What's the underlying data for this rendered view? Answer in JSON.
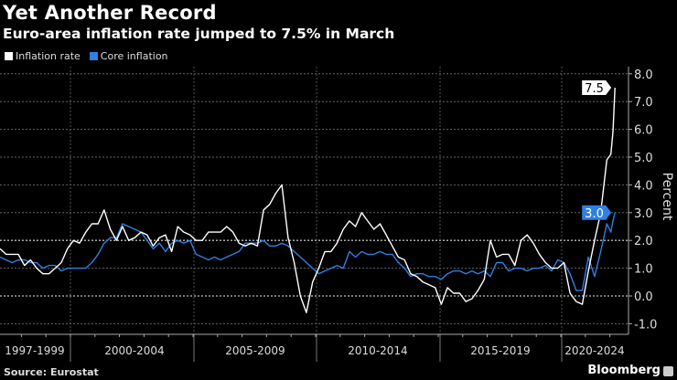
{
  "chart_data": {
    "type": "line",
    "title": "Yet Another Record",
    "subtitle": "Euro-area inflation rate jumped to 7.5% in March",
    "ylabel": "Percent",
    "ylim": [
      -1.0,
      8.0
    ],
    "yticks": [
      "8.0",
      "7.0",
      "6.0",
      "5.0",
      "4.0",
      "3.0",
      "2.0",
      "1.0",
      "0.0",
      "-1.0"
    ],
    "xtick_labels": [
      "1997-1999",
      "2000-2004",
      "2005-2009",
      "2010-2014",
      "2015-2019",
      "2020-2024"
    ],
    "grid": true,
    "legend_placement": "top-left",
    "x": [
      "1997-02",
      "1997-05",
      "1997-08",
      "1997-11",
      "1998-02",
      "1998-05",
      "1998-08",
      "1998-11",
      "1999-02",
      "1999-05",
      "1999-08",
      "1999-11",
      "2000-02",
      "2000-05",
      "2000-08",
      "2000-11",
      "2001-02",
      "2001-05",
      "2001-08",
      "2001-11",
      "2002-02",
      "2002-05",
      "2002-08",
      "2002-11",
      "2003-02",
      "2003-05",
      "2003-08",
      "2003-11",
      "2004-02",
      "2004-05",
      "2004-08",
      "2004-11",
      "2005-02",
      "2005-05",
      "2005-08",
      "2005-11",
      "2006-02",
      "2006-05",
      "2006-08",
      "2006-11",
      "2007-02",
      "2007-05",
      "2007-08",
      "2007-11",
      "2008-02",
      "2008-05",
      "2008-08",
      "2008-11",
      "2009-02",
      "2009-05",
      "2009-08",
      "2009-11",
      "2010-02",
      "2010-05",
      "2010-08",
      "2010-11",
      "2011-02",
      "2011-05",
      "2011-08",
      "2011-11",
      "2012-02",
      "2012-05",
      "2012-08",
      "2012-11",
      "2013-02",
      "2013-05",
      "2013-08",
      "2013-11",
      "2014-02",
      "2014-05",
      "2014-08",
      "2014-11",
      "2015-02",
      "2015-05",
      "2015-08",
      "2015-11",
      "2016-02",
      "2016-05",
      "2016-08",
      "2016-11",
      "2017-02",
      "2017-05",
      "2017-08",
      "2017-11",
      "2018-02",
      "2018-05",
      "2018-08",
      "2018-11",
      "2019-02",
      "2019-05",
      "2019-08",
      "2019-11",
      "2020-02",
      "2020-05",
      "2020-08",
      "2020-11",
      "2021-02",
      "2021-05",
      "2021-08",
      "2021-11",
      "2022-01",
      "2022-02",
      "2022-03"
    ],
    "series": [
      {
        "name": "Inflation rate",
        "color": "#ffffff",
        "values": [
          1.7,
          1.5,
          1.5,
          1.5,
          1.1,
          1.3,
          1.0,
          0.8,
          0.8,
          1.0,
          1.2,
          1.7,
          2.0,
          1.9,
          2.3,
          2.6,
          2.6,
          3.1,
          2.4,
          2.0,
          2.5,
          2.0,
          2.1,
          2.3,
          2.2,
          1.8,
          2.1,
          2.2,
          1.6,
          2.5,
          2.3,
          2.2,
          2.0,
          2.0,
          2.3,
          2.3,
          2.3,
          2.5,
          2.3,
          1.9,
          1.8,
          1.9,
          1.8,
          3.1,
          3.3,
          3.7,
          4.0,
          2.1,
          1.2,
          0.0,
          -0.6,
          0.5,
          1.0,
          1.6,
          1.6,
          1.9,
          2.4,
          2.7,
          2.5,
          3.0,
          2.7,
          2.4,
          2.6,
          2.2,
          1.8,
          1.4,
          1.3,
          0.8,
          0.7,
          0.5,
          0.4,
          0.3,
          -0.3,
          0.3,
          0.1,
          0.1,
          -0.2,
          -0.1,
          0.2,
          0.6,
          2.0,
          1.4,
          1.5,
          1.5,
          1.1,
          2.0,
          2.2,
          1.9,
          1.5,
          1.2,
          1.0,
          1.0,
          1.2,
          0.1,
          -0.2,
          -0.3,
          0.9,
          2.0,
          3.0,
          4.9,
          5.1,
          5.9,
          7.5
        ]
      },
      {
        "name": "Core inflation",
        "color": "#2f80e0",
        "values": [
          1.4,
          1.3,
          1.2,
          1.3,
          1.3,
          1.2,
          1.2,
          1.0,
          1.1,
          1.1,
          0.9,
          1.0,
          1.0,
          1.0,
          1.0,
          1.2,
          1.5,
          1.9,
          2.1,
          2.1,
          2.6,
          2.5,
          2.4,
          2.3,
          2.0,
          1.7,
          1.9,
          1.6,
          1.9,
          2.0,
          1.9,
          2.0,
          1.5,
          1.4,
          1.3,
          1.4,
          1.3,
          1.4,
          1.5,
          1.6,
          1.9,
          1.9,
          1.9,
          2.0,
          1.8,
          1.8,
          1.9,
          1.8,
          1.6,
          1.4,
          1.2,
          1.0,
          0.8,
          0.9,
          1.0,
          1.1,
          1.0,
          1.6,
          1.4,
          1.6,
          1.5,
          1.5,
          1.6,
          1.5,
          1.5,
          1.2,
          1.0,
          0.7,
          0.8,
          0.8,
          0.7,
          0.7,
          0.6,
          0.8,
          0.9,
          0.9,
          0.8,
          0.9,
          0.8,
          0.9,
          0.7,
          1.2,
          1.2,
          0.9,
          1.0,
          1.0,
          0.9,
          1.0,
          1.0,
          1.1,
          0.9,
          1.3,
          1.2,
          0.8,
          0.2,
          0.2,
          1.4,
          0.7,
          1.6,
          2.6,
          2.3,
          2.7,
          3.0
        ]
      }
    ],
    "last_value_labels": [
      "7.5",
      "3.0"
    ]
  },
  "legend": [
    {
      "label": "Inflation rate",
      "color": "#ffffff"
    },
    {
      "label": "Core inflation",
      "color": "#2f80e0"
    }
  ],
  "footer": {
    "source": "Source: Eurostat",
    "brand": "Bloomberg"
  }
}
